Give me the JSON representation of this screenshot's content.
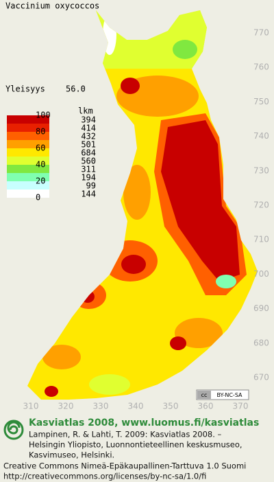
{
  "title": "Vaccinium oxycoccos",
  "frequency": {
    "label": "Yleisyys",
    "value": "56.0"
  },
  "legend": {
    "scale_labels": [
      100,
      80,
      60,
      40,
      20,
      0
    ],
    "count_header": "lkm",
    "classes": [
      {
        "color": "#c80000",
        "count": 394
      },
      {
        "color": "#e82000",
        "count": 414
      },
      {
        "color": "#ff6000",
        "count": 432
      },
      {
        "color": "#ffa000",
        "count": 501
      },
      {
        "color": "#ffe800",
        "count": 684
      },
      {
        "color": "#e0ff30",
        "count": 560
      },
      {
        "color": "#80e840",
        "count": 311
      },
      {
        "color": "#80ffb0",
        "count": 194
      },
      {
        "color": "#c8ffff",
        "count": 99
      },
      {
        "color": "#ffffff",
        "count": 144
      }
    ]
  },
  "grid": {
    "y_labels": [
      770,
      760,
      750,
      740,
      730,
      720,
      710,
      700,
      690,
      680,
      670
    ],
    "x_labels": [
      310,
      320,
      330,
      340,
      350,
      360,
      370
    ]
  },
  "license_badge": {
    "cc": "cc",
    "text": "BY-NC-SA"
  },
  "footer": {
    "brand": "Kasviatlas 2008, www.luomus.fi/kasviatlas",
    "citation": [
      "Lampinen, R. & Lahti, T. 2009: Kasviatlas 2008. –",
      "Helsingin Yliopisto, Luonnontieteellinen keskusmuseo,",
      "Kasvimuseo, Helsinki."
    ],
    "license": [
      "Creative Commons Nimeä-Epäkaupallinen-Tarttuva 1.0 Suomi",
      "http://creativecommons.org/licenses/by-nc-sa/1.0/fi"
    ]
  }
}
